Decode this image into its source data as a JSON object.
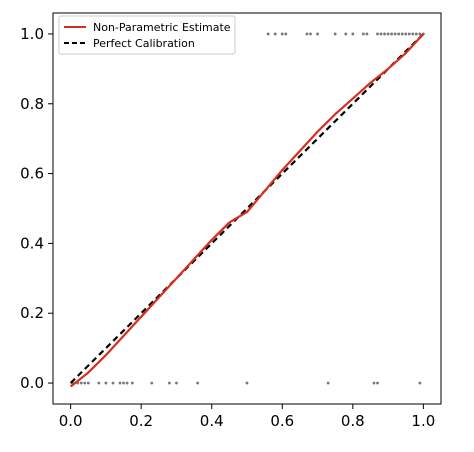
{
  "chart_data": {
    "type": "line",
    "title": "",
    "xlabel": "",
    "ylabel": "",
    "xlim": [
      -0.05,
      1.05
    ],
    "ylim": [
      -0.06,
      1.06
    ],
    "grid": false,
    "legend_position": "top-left",
    "x_ticks": [
      0.0,
      0.2,
      0.4,
      0.6,
      0.8,
      1.0
    ],
    "y_ticks": [
      0.0,
      0.2,
      0.4,
      0.6,
      0.8,
      1.0
    ],
    "x_tick_labels": [
      "0.0",
      "0.2",
      "0.4",
      "0.6",
      "0.8",
      "1.0"
    ],
    "y_tick_labels": [
      "0.0",
      "0.2",
      "0.4",
      "0.6",
      "0.8",
      "1.0"
    ],
    "series": [
      {
        "name": "Non-Parametric Estimate",
        "color": "#d62f22",
        "style": "solid",
        "x": [
          0.0,
          0.05,
          0.1,
          0.15,
          0.2,
          0.25,
          0.3,
          0.35,
          0.4,
          0.45,
          0.5,
          0.55,
          0.6,
          0.65,
          0.7,
          0.75,
          0.8,
          0.85,
          0.9,
          0.95,
          1.0
        ],
        "y": [
          -0.01,
          0.03,
          0.08,
          0.135,
          0.19,
          0.245,
          0.3,
          0.355,
          0.41,
          0.46,
          0.49,
          0.55,
          0.61,
          0.665,
          0.72,
          0.77,
          0.815,
          0.86,
          0.9,
          0.945,
          1.0
        ]
      },
      {
        "name": "Perfect Calibration",
        "color": "#000000",
        "style": "dashed",
        "x": [
          0.0,
          1.0
        ],
        "y": [
          0.0,
          1.0
        ]
      }
    ],
    "rug_points": {
      "color": "#555555",
      "y0_x": [
        0.005,
        0.02,
        0.03,
        0.04,
        0.05,
        0.08,
        0.1,
        0.12,
        0.14,
        0.15,
        0.16,
        0.175,
        0.23,
        0.28,
        0.3,
        0.36,
        0.5,
        0.73,
        0.86,
        0.87,
        0.99
      ],
      "y1_x": [
        0.56,
        0.58,
        0.6,
        0.61,
        0.67,
        0.68,
        0.7,
        0.75,
        0.78,
        0.8,
        0.83,
        0.84,
        0.87,
        0.88,
        0.89,
        0.9,
        0.91,
        0.92,
        0.93,
        0.94,
        0.95,
        0.96,
        0.97,
        0.98,
        0.99,
        1.0
      ]
    }
  }
}
